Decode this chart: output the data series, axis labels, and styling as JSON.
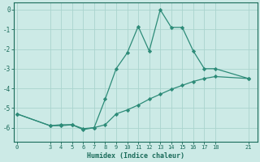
{
  "x_main": [
    0,
    3,
    4,
    5,
    6,
    7,
    8,
    9,
    10,
    11,
    12,
    13,
    14,
    15,
    16,
    17,
    18,
    21
  ],
  "y_main": [
    -5.3,
    -5.9,
    -5.9,
    -5.85,
    -6.1,
    -6.0,
    -4.55,
    -3.0,
    -2.2,
    -0.85,
    -2.1,
    0.0,
    -0.9,
    -0.9,
    -2.1,
    -3.0,
    -3.0,
    -3.5
  ],
  "x_diag": [
    0,
    3,
    4,
    5,
    6,
    7,
    8,
    9,
    10,
    11,
    12,
    13,
    14,
    15,
    16,
    17,
    18,
    21
  ],
  "y_diag": [
    -5.3,
    -5.9,
    -5.85,
    -5.85,
    -6.05,
    -6.0,
    -5.85,
    -5.3,
    -5.1,
    -4.85,
    -4.55,
    -4.3,
    -4.05,
    -3.85,
    -3.65,
    -3.5,
    -3.4,
    -3.5
  ],
  "line_color": "#2d8b78",
  "marker_color": "#2d8b78",
  "bg_color": "#cceae6",
  "grid_color": "#aad4ce",
  "axis_color": "#1a6b5a",
  "tick_color": "#1a6b5a",
  "xlabel": "Humidex (Indice chaleur)",
  "xticks": [
    0,
    3,
    4,
    5,
    6,
    7,
    8,
    9,
    10,
    11,
    12,
    13,
    14,
    15,
    16,
    17,
    18,
    21
  ],
  "yticks": [
    0,
    -1,
    -2,
    -3,
    -4,
    -5,
    -6
  ],
  "ylim": [
    -6.7,
    0.35
  ],
  "xlim": [
    -0.3,
    21.8
  ]
}
